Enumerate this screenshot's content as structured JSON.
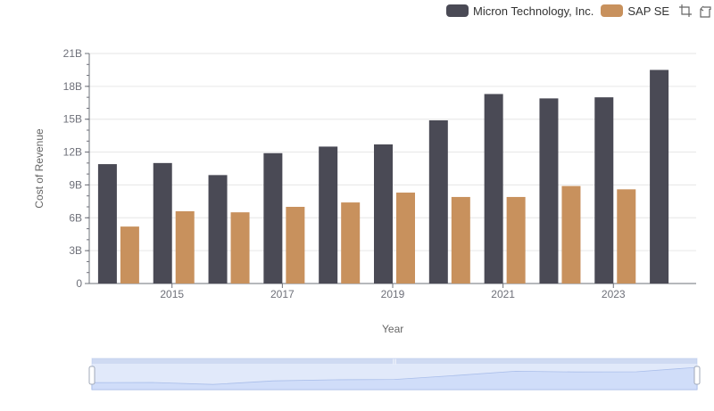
{
  "legend": {
    "series_a": "Micron Technology, Inc.",
    "series_b": "SAP SE"
  },
  "toolbox": {
    "zoom_icon": "data-zoom-icon",
    "restore_icon": "restore-icon"
  },
  "colors": {
    "series_a": "#4a4a55",
    "series_b": "#c8915d",
    "grid": "#e6e6e6",
    "axis": "#6e7079",
    "slider_fill": "#d6e2fb",
    "slider_border": "#a9bde8"
  },
  "chart_data": {
    "type": "bar",
    "xlabel": "Year",
    "ylabel": "Cost of Revenue",
    "categories": [
      "2014",
      "2015",
      "2016",
      "2017",
      "2018",
      "2019",
      "2020",
      "2021",
      "2022",
      "2023",
      "2024"
    ],
    "x_tick_labels": [
      "2015",
      "2017",
      "2019",
      "2021",
      "2023"
    ],
    "y_tick_labels": [
      "0",
      "3B",
      "6B",
      "9B",
      "12B",
      "15B",
      "18B",
      "21B"
    ],
    "ylim": [
      0,
      21
    ],
    "y_unit": "B",
    "grid": true,
    "legend_position": "top-right",
    "series": [
      {
        "name": "Micron Technology, Inc.",
        "values": [
          10.9,
          11.0,
          9.9,
          11.9,
          12.5,
          12.7,
          14.9,
          17.3,
          16.9,
          17.0,
          19.5
        ]
      },
      {
        "name": "SAP SE",
        "values": [
          5.2,
          6.6,
          6.5,
          7.0,
          7.4,
          8.3,
          7.9,
          7.9,
          8.9,
          8.6,
          null
        ]
      }
    ]
  }
}
